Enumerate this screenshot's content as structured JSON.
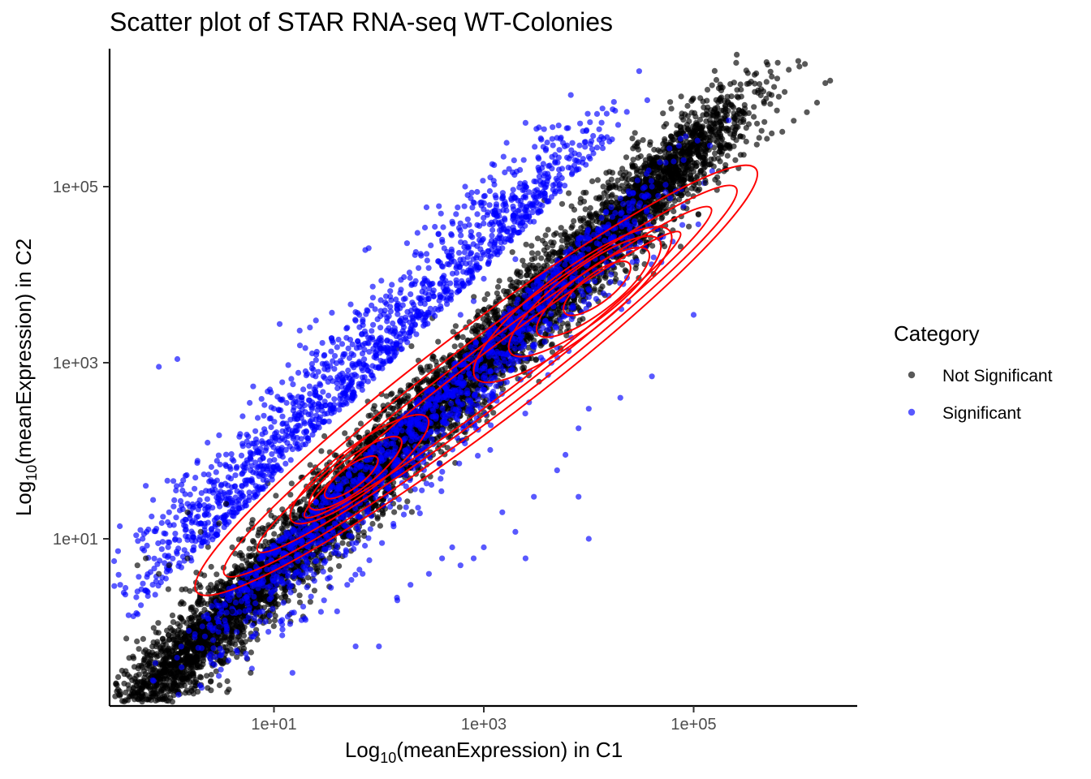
{
  "chart_data": {
    "type": "scatter",
    "title": "Scatter plot of STAR RNA-seq WT-Colonies",
    "xlabel": {
      "base": "Log",
      "sub": "10",
      "rest": "(meanExpression) in C1"
    },
    "ylabel": {
      "base": "Log",
      "sub": "10",
      "rest": "(meanExpression) in C2"
    },
    "x_scale": "log10",
    "y_scale": "log10",
    "xlim": [
      0.3,
      4000000
    ],
    "ylim": [
      0.2,
      4000000
    ],
    "x_ticks": [
      {
        "value": 10,
        "label": "1e+01"
      },
      {
        "value": 1000,
        "label": "1e+03"
      },
      {
        "value": 100000,
        "label": "1e+05"
      }
    ],
    "y_ticks": [
      {
        "value": 10,
        "label": "1e+01"
      },
      {
        "value": 1000,
        "label": "1e+03"
      },
      {
        "value": 100000,
        "label": "1e+05"
      }
    ],
    "grid": false,
    "legend": {
      "title": "Category",
      "placement": "right",
      "items": [
        {
          "label": "Not Significant",
          "color": "#000000"
        },
        {
          "label": "Significant",
          "color": "#0000ff"
        }
      ]
    },
    "series": [
      {
        "label": "Not Significant",
        "color": "#000000",
        "opacity": 0.65,
        "points": [
          [
            2000000,
            1600000
          ],
          [
            1800000,
            1500000
          ],
          [
            1500000,
            900000
          ],
          [
            1200000,
            700000
          ],
          [
            900000,
            560000
          ],
          [
            700000,
            420000
          ],
          [
            500000,
            350000
          ],
          [
            400000,
            300000
          ],
          [
            300000,
            230000
          ],
          [
            250000,
            200000
          ],
          [
            200000,
            160000
          ],
          [
            160000,
            120000
          ],
          [
            130000,
            110000
          ],
          [
            110000,
            90000
          ],
          [
            80000,
            100000
          ],
          [
            60000,
            120000
          ],
          [
            0.5,
            5
          ],
          [
            0.6,
            6
          ],
          [
            0.8,
            4
          ],
          [
            1,
            5
          ],
          [
            1.5,
            6
          ],
          [
            2,
            4
          ],
          [
            2.5,
            3
          ],
          [
            3,
            2
          ],
          [
            4,
            1.5
          ],
          [
            5,
            1
          ],
          [
            6,
            0.3
          ],
          [
            4,
            0.5
          ],
          [
            3,
            1
          ],
          [
            2,
            12
          ],
          [
            3,
            15
          ],
          [
            1.5,
            20
          ],
          [
            3.5,
            25
          ],
          [
            4,
            8
          ],
          [
            5,
            6
          ],
          [
            6,
            5
          ]
        ]
      },
      {
        "label": "Significant",
        "color": "#0000ff",
        "opacity": 0.65,
        "points": [
          [
            0.8,
            900
          ],
          [
            1.2,
            1100
          ],
          [
            0.6,
            40
          ],
          [
            1,
            20
          ],
          [
            1.5,
            25
          ],
          [
            2,
            15
          ],
          [
            3,
            150
          ],
          [
            4,
            80
          ],
          [
            5,
            120
          ],
          [
            6,
            60
          ],
          [
            8,
            250
          ],
          [
            10,
            300
          ],
          [
            12,
            600
          ],
          [
            15,
            400
          ],
          [
            20,
            800
          ],
          [
            25,
            700
          ],
          [
            30,
            1200
          ],
          [
            40,
            1500
          ],
          [
            50,
            2500
          ],
          [
            60,
            3000
          ],
          [
            80,
            20000
          ],
          [
            100,
            900
          ],
          [
            120,
            1800
          ],
          [
            150,
            4000
          ],
          [
            200,
            6000
          ],
          [
            300,
            8000
          ],
          [
            400,
            25000
          ],
          [
            500,
            40000
          ],
          [
            600,
            3500
          ],
          [
            800,
            5000
          ],
          [
            1000,
            9000
          ],
          [
            1500,
            20000
          ],
          [
            2000,
            15000
          ],
          [
            3000,
            40000
          ],
          [
            30000,
            60000
          ],
          [
            40000,
            100000
          ],
          [
            80000,
            60000
          ],
          [
            150000,
            150000
          ],
          [
            100000,
            3500
          ],
          [
            40000,
            700
          ],
          [
            20000,
            400
          ],
          [
            10000,
            300
          ],
          [
            8000,
            180
          ],
          [
            6000,
            90
          ],
          [
            5000,
            60
          ],
          [
            3000,
            30
          ],
          [
            2000,
            12
          ],
          [
            1500,
            20
          ],
          [
            1000,
            8
          ],
          [
            800,
            6
          ],
          [
            600,
            5
          ],
          [
            500,
            8
          ],
          [
            400,
            6
          ],
          [
            300,
            4
          ],
          [
            200,
            3
          ],
          [
            150,
            2
          ],
          [
            100,
            0.6
          ],
          [
            60,
            0.6
          ],
          [
            40,
            1.5
          ],
          [
            20,
            1.2
          ],
          [
            15,
            0.3
          ],
          [
            12,
            0.8
          ],
          [
            30,
            2
          ],
          [
            50,
            3
          ],
          [
            70,
            4
          ],
          [
            10000,
            10
          ],
          [
            8000,
            30
          ],
          [
            2500,
            6
          ]
        ]
      }
    ],
    "density_contours": {
      "color": "#ff0000",
      "levels": 9
    }
  }
}
